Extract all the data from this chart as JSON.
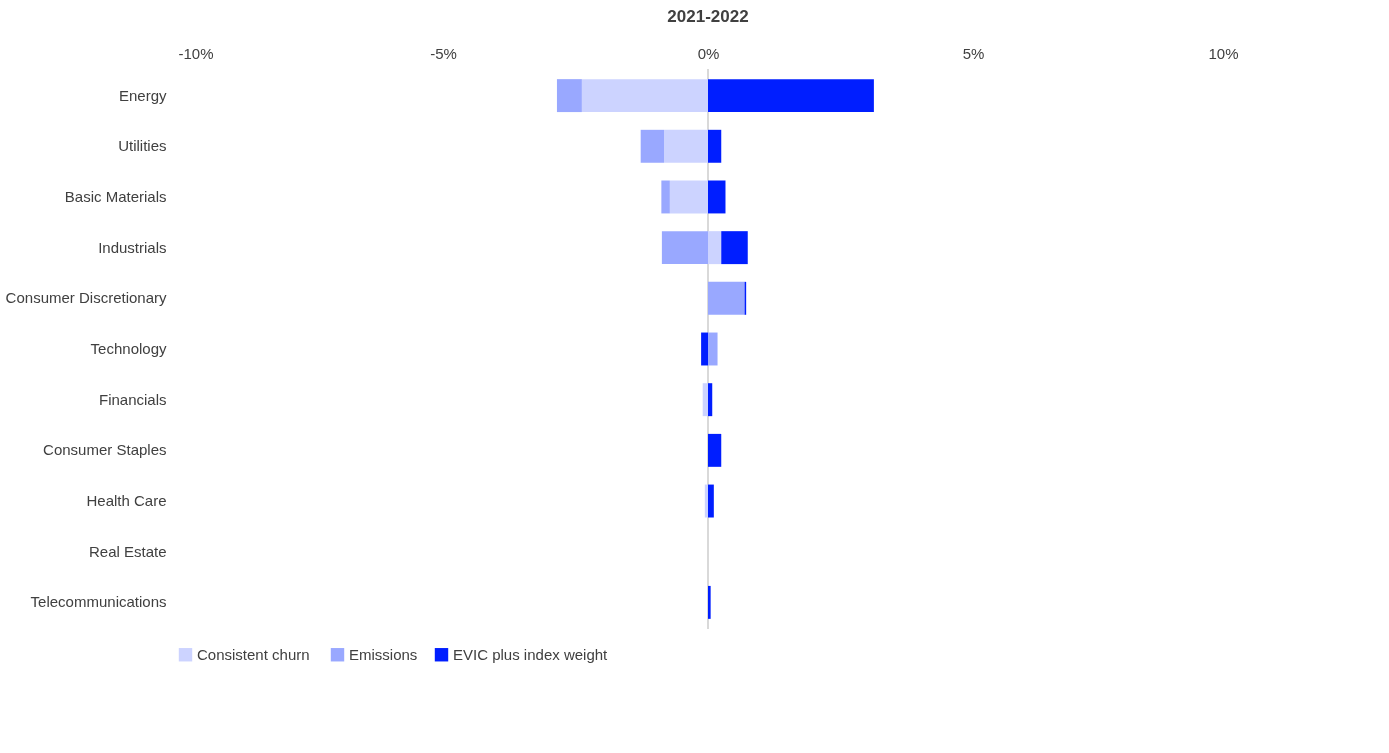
{
  "chart_data": {
    "type": "bar",
    "title": "2021-2022",
    "orientation": "horizontal",
    "stacked": true,
    "categories": [
      "Energy",
      "Utilities",
      "Basic Materials",
      "Industrials",
      "Consumer Discretionary",
      "Technology",
      "Financials",
      "Consumer Staples",
      "Health Care",
      "Real Estate",
      "Telecommunications"
    ],
    "series": [
      {
        "name": "Consistent  churn",
        "color": "#ccd3ff",
        "values": [
          -2.38,
          -0.83,
          -0.72,
          0.25,
          null,
          null,
          -0.1,
          null,
          -0.06,
          null,
          null
        ]
      },
      {
        "name": "Emissions",
        "color": "#99a8ff",
        "values": [
          -0.47,
          -0.44,
          -0.16,
          -0.87,
          0.69,
          0.18,
          null,
          null,
          null,
          null,
          null
        ]
      },
      {
        "name": "EVIC plus index weight",
        "color": "#001eff",
        "values": [
          3.13,
          0.25,
          0.33,
          0.5,
          0.03,
          -0.13,
          0.08,
          0.25,
          0.11,
          null,
          0.05
        ]
      }
    ],
    "xlim": [
      -10,
      10
    ],
    "xticks": [
      {
        "value": -10,
        "label": "-10%"
      },
      {
        "value": -5,
        "label": "-5%"
      },
      {
        "value": 0,
        "label": "0%"
      },
      {
        "value": 5,
        "label": "5%"
      },
      {
        "value": 10,
        "label": "10%"
      }
    ],
    "ref_lines": [
      {
        "axis": "x",
        "value": 0,
        "label": null,
        "color": "#d9d9d9"
      }
    ],
    "grid": false,
    "legend": "bottom"
  }
}
